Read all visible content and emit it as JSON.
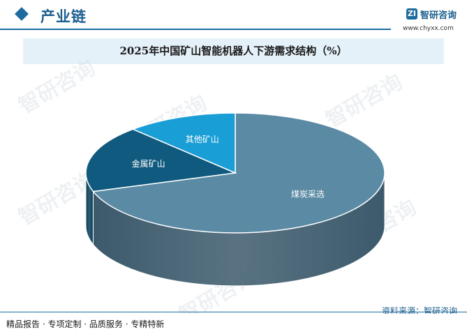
{
  "header": {
    "section_title": "产业链",
    "logo_mark": "ZI",
    "logo_name": "智研咨询",
    "logo_url": "www.chyxx.com"
  },
  "watermark_text": "智研咨询",
  "chart_data": {
    "type": "pie",
    "title": "2025年中国矿山智能机器人下游需求结构（%）",
    "categories": [
      "煤炭采选",
      "金属矿山",
      "其他矿山"
    ],
    "values": [
      70,
      18,
      12
    ],
    "colors": [
      "#5b8aa4",
      "#0f5a7e",
      "#1a9ed6"
    ],
    "side_colors": [
      "#3c5a6c",
      "#0b3f59",
      "#127aa6"
    ],
    "data_labels_shown": false,
    "legend": "none"
  },
  "footer": {
    "tags": "精品报告 · 专项定制 · 品质服务 · 专精特新",
    "source": "资料来源：智研咨询"
  }
}
